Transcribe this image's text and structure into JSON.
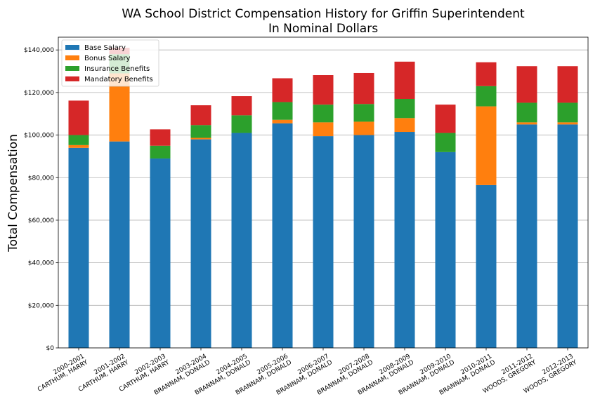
{
  "chart_data": {
    "type": "bar",
    "stacked": true,
    "title": [
      "WA School District Compensation History for Griffin Superintendent",
      "In Nominal Dollars"
    ],
    "xlabel": "",
    "ylabel": "Total Compensation",
    "ylim": [
      0,
      146000
    ],
    "yticks": [
      0,
      20000,
      40000,
      60000,
      80000,
      100000,
      120000,
      140000
    ],
    "ytick_labels": [
      "$0",
      "$20,000",
      "$40,000",
      "$60,000",
      "$80,000",
      "$100,000",
      "$120,000",
      "$140,000"
    ],
    "grid": "horizontal",
    "legend_position": "top-left",
    "categories": [
      [
        "2000-2001",
        "CARTHUM, HARRY"
      ],
      [
        "2001-2002",
        "CARTHUM, HARRY"
      ],
      [
        "2002-2003",
        "CARTHUM, HARRY"
      ],
      [
        "2003-2004",
        "BRANNAM, DONALD"
      ],
      [
        "2004-2005",
        "BRANNAM, DONALD"
      ],
      [
        "2005-2006",
        "BRANNAM, DONALD"
      ],
      [
        "2006-2007",
        "BRANNAM, DONALD"
      ],
      [
        "2007-2008",
        "BRANNAM, DONALD"
      ],
      [
        "2008-2009",
        "BRANNAM, DONALD"
      ],
      [
        "2009-2010",
        "BRANNAM, DONALD"
      ],
      [
        "2010-2011",
        "BRANNAM, DONALD"
      ],
      [
        "2011-2012",
        "WOODS, GREGORY"
      ],
      [
        "2012-2013",
        "WOODS, GREGORY"
      ]
    ],
    "series": [
      {
        "name": "Base Salary",
        "color": "#1f77b4",
        "values": [
          94000,
          97000,
          89000,
          98000,
          101000,
          105500,
          99500,
          100000,
          101500,
          92000,
          76500,
          105000,
          105000
        ]
      },
      {
        "name": "Bonus Salary",
        "color": "#ff7f0e",
        "values": [
          1300,
          32000,
          0,
          700,
          0,
          1700,
          6500,
          6300,
          6500,
          0,
          37000,
          1000,
          1000
        ]
      },
      {
        "name": "Insurance Benefits",
        "color": "#2ca02c",
        "values": [
          4700,
          9000,
          6000,
          6000,
          8300,
          8300,
          8300,
          8300,
          9000,
          9000,
          9500,
          9200,
          9200
        ]
      },
      {
        "name": "Mandatory Benefits",
        "color": "#d62728",
        "values": [
          16200,
          3000,
          7700,
          9300,
          9000,
          11200,
          13900,
          14600,
          17500,
          13300,
          11200,
          17200,
          17200
        ]
      }
    ]
  }
}
